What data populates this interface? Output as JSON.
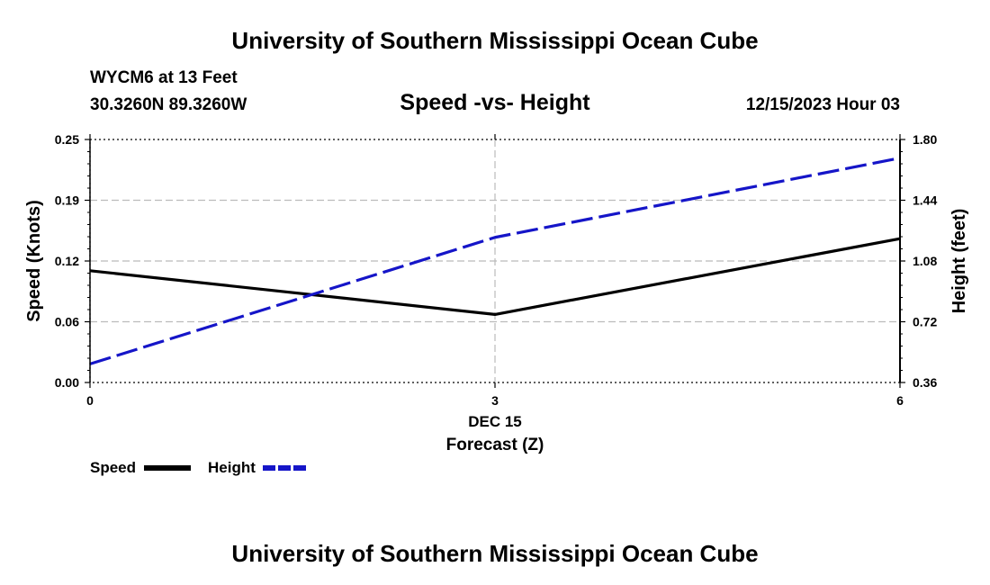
{
  "header": {
    "title": "University of Southern Mississippi Ocean Cube",
    "station": "WYCM6 at 13 Feet",
    "coords": "30.3260N  89.3260W",
    "subtitle": "Speed -vs- Height",
    "datetime": "12/15/2023 Hour 03"
  },
  "footer": {
    "title": "University of Southern Mississippi Ocean Cube"
  },
  "legend": {
    "speed_label": "Speed",
    "height_label": "Height"
  },
  "colors": {
    "speed": "#000000",
    "height": "#1515c8",
    "grid": "#bbbbbb"
  },
  "chart_data": {
    "type": "line",
    "title": "Speed -vs- Height",
    "xlabel": "Forecast (Z)",
    "xdate_label": "DEC 15",
    "ylabel_left": "Speed (Knots)",
    "ylabel_right": "Height (feet)",
    "x": [
      0,
      3,
      6
    ],
    "x_ticks": [
      "0",
      "3",
      "6"
    ],
    "xlim": [
      0,
      6
    ],
    "ylim_left": [
      0,
      0.25
    ],
    "ylim_right": [
      0.36,
      1.8
    ],
    "y_ticks_left": [
      "0.00",
      "0.06",
      "0.12",
      "0.19",
      "0.25"
    ],
    "y_ticks_right": [
      "0.36",
      "0.72",
      "1.08",
      "1.44",
      "1.80"
    ],
    "grid": true,
    "legend_position": "bottom-left",
    "series": [
      {
        "name": "Speed",
        "axis": "left",
        "style": "solid",
        "values": [
          0.115,
          0.07,
          0.148
        ]
      },
      {
        "name": "Height",
        "axis": "right",
        "style": "dashed",
        "values": [
          0.47,
          1.22,
          1.69
        ]
      }
    ]
  }
}
